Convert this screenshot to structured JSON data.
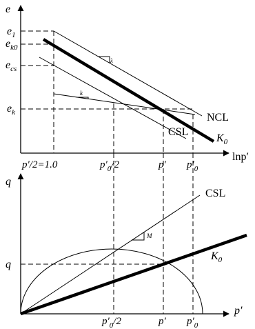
{
  "top_plot": {
    "y_axis_label": "e",
    "x_axis_label": "lnp′",
    "y_ticks": [
      {
        "main": "e",
        "sub": "1"
      },
      {
        "main": "e",
        "sub": "k0"
      },
      {
        "main": "e",
        "sub": "cs"
      },
      {
        "main": "e",
        "sub": "k"
      }
    ],
    "x_ticks": [
      {
        "main": "p′/2=1.0",
        "sub": ""
      },
      {
        "main": "p′",
        "sub": "0",
        "suffix": "/2"
      },
      {
        "main": "p′",
        "sub": ""
      },
      {
        "main": "p′",
        "sub": "0"
      }
    ],
    "line_labels": {
      "ncl": "NCL",
      "csl": "CSL",
      "k0": "K",
      "k0_sub": "0"
    },
    "slope_labels": {
      "lambda": "λ",
      "kappa": "k"
    }
  },
  "bottom_plot": {
    "y_axis_label": "q",
    "x_axis_label": "p′",
    "y_ticks": [
      {
        "main": "q",
        "sub": ""
      }
    ],
    "x_ticks": [
      {
        "main": "p′",
        "sub": "0",
        "suffix": "/2"
      },
      {
        "main": "p′",
        "sub": ""
      },
      {
        "main": "p′",
        "sub": "0"
      }
    ],
    "line_labels": {
      "csl": "CSL",
      "k0": "K",
      "k0_sub": "0"
    },
    "slope_labels": {
      "m": "M"
    }
  }
}
